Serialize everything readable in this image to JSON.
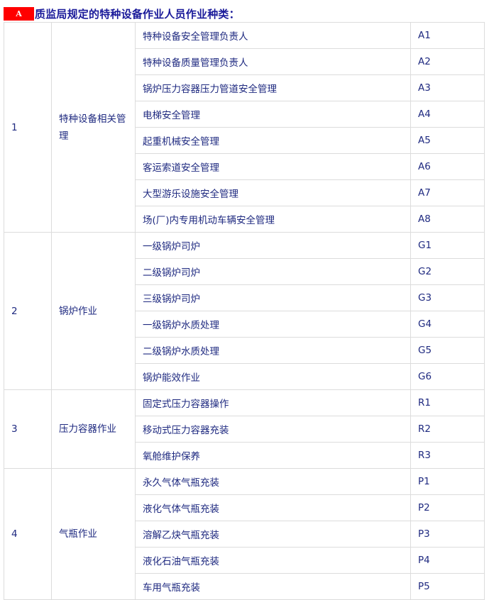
{
  "heading": {
    "badge": "A",
    "title": "质监局规定的特种设备作业人员作业种类："
  },
  "groups": [
    {
      "no": "1",
      "category": "特种设备相关管理",
      "items": [
        {
          "name": "特种设备安全管理负责人",
          "code": "A1"
        },
        {
          "name": "特种设备质量管理负责人",
          "code": "A2"
        },
        {
          "name": "锅炉压力容器压力管道安全管理",
          "code": "A3"
        },
        {
          "name": "电梯安全管理",
          "code": "A4"
        },
        {
          "name": "起重机械安全管理",
          "code": "A5"
        },
        {
          "name": "客运索道安全管理",
          "code": "A6"
        },
        {
          "name": "大型游乐设施安全管理",
          "code": "A7"
        },
        {
          "name": "场(厂)内专用机动车辆安全管理",
          "code": "A8"
        }
      ]
    },
    {
      "no": "2",
      "category": "锅炉作业",
      "items": [
        {
          "name": "一级锅炉司炉",
          "code": "G1"
        },
        {
          "name": "二级锅炉司炉",
          "code": "G2"
        },
        {
          "name": "三级锅炉司炉",
          "code": "G3"
        },
        {
          "name": "一级锅炉水质处理",
          "code": "G4"
        },
        {
          "name": "二级锅炉水质处理",
          "code": "G5"
        },
        {
          "name": "锅炉能效作业",
          "code": "G6"
        }
      ]
    },
    {
      "no": "3",
      "category": "压力容器作业",
      "items": [
        {
          "name": "固定式压力容器操作",
          "code": "R1"
        },
        {
          "name": "移动式压力容器充装",
          "code": "R2"
        },
        {
          "name": "氧舱维护保养",
          "code": "R3"
        }
      ]
    },
    {
      "no": "4",
      "category": "气瓶作业",
      "items": [
        {
          "name": "永久气体气瓶充装",
          "code": "P1"
        },
        {
          "name": "液化气体气瓶充装",
          "code": "P2"
        },
        {
          "name": "溶解乙炔气瓶充装",
          "code": "P3"
        },
        {
          "name": "液化石油气瓶充装",
          "code": "P4"
        },
        {
          "name": "车用气瓶充装",
          "code": "P5"
        }
      ]
    }
  ]
}
